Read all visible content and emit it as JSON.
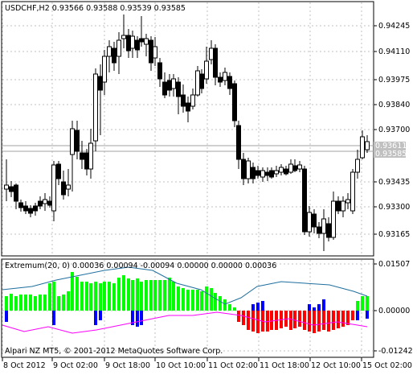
{
  "main_chart": {
    "header": "USDCHF,H2  0.93566 0.93588 0.93539 0.93585",
    "y_labels": [
      "0.94245",
      "0.94110",
      "0.93975",
      "0.93840",
      "0.93700",
      "0.93435",
      "0.93300",
      "0.93165"
    ],
    "price_bid": "0.93611",
    "price_ask": "0.93585"
  },
  "indicator": {
    "header": "Extremum(20, 0) 0.00036 0.00094 -0.00094 0.00000 0.00000 0.00036",
    "y_labels": [
      "0.01507",
      "0.00000",
      "-0.01242"
    ]
  },
  "footer": {
    "copyright": "Alpari NZ MT5, © 2001-2012 MetaQuotes Software Corp."
  },
  "x_axis": {
    "labels": [
      "8 Oct 2012",
      "9 Oct 02:00",
      "9 Oct 18:00",
      "10 Oct 10:00",
      "11 Oct 02:00",
      "11 Oct 18:00",
      "12 Oct 10:00",
      "15 Oct 02:00"
    ]
  },
  "colors": {
    "bull_body": "#ffffff",
    "bear_body": "#000000",
    "hist_green": "#00ff00",
    "hist_blue": "#0000ff",
    "hist_red": "#ff0000",
    "line_upper": "#1f6f9e",
    "line_lower": "#ff00ff"
  }
}
